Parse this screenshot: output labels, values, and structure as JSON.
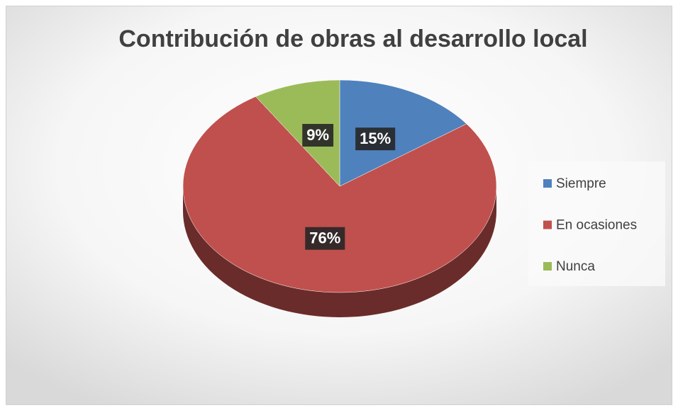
{
  "chart_data": {
    "type": "pie",
    "title": "Contribución de obras al desarrollo local",
    "categories": [
      "Siempre",
      "En ocasiones",
      "Nunca"
    ],
    "values": [
      15,
      76,
      9
    ],
    "value_labels": [
      "15%",
      "76%",
      "9%"
    ],
    "colors": [
      "#4f81bd",
      "#c0504d",
      "#9bbb59"
    ],
    "legend": "right"
  }
}
